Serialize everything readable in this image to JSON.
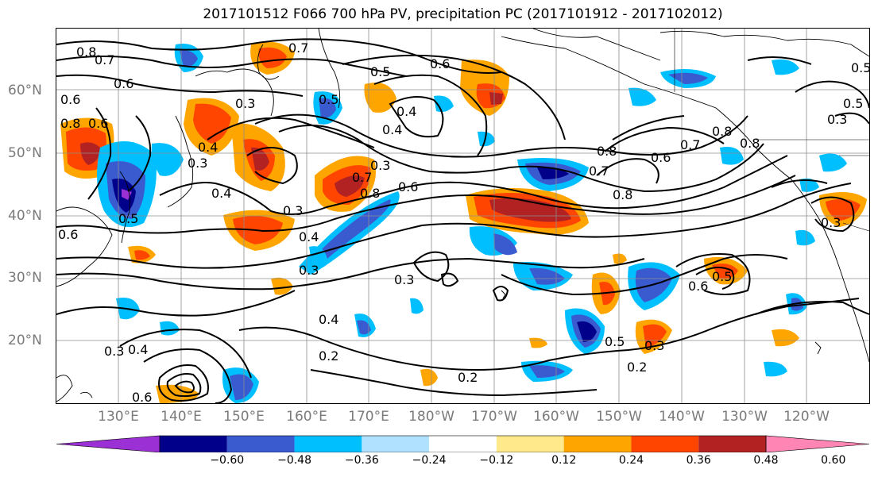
{
  "title": "2017101512 F066 700 hPa PV, precipitation PC (2017101912 - 2017102012)",
  "lat_labels": [
    "60°N",
    "50°N",
    "40°N",
    "30°N",
    "20°N"
  ],
  "lon_labels": [
    "130°E",
    "140°E",
    "150°E",
    "160°E",
    "170°E",
    "180°W",
    "170°W",
    "160°W",
    "150°W",
    "140°W",
    "130°W",
    "120°W"
  ],
  "colorbar": {
    "ticks": [
      "−0.60",
      "−0.48",
      "−0.36",
      "−0.24",
      "−0.12",
      "0.12",
      "0.24",
      "0.36",
      "0.48",
      "0.60"
    ],
    "colors": [
      "#9b30d4",
      "#00008b",
      "#3a5bd0",
      "#00bfff",
      "#b0e2ff",
      "#ffffff",
      "#ffe98a",
      "#ffa500",
      "#ff4500",
      "#b22222",
      "#ff85b5"
    ]
  },
  "contour_labels": [
    "0.8",
    "0.7",
    "0.6",
    "0.7",
    "0.5",
    "0.6",
    "0.4",
    "0.4",
    "0.3",
    "0.6",
    "0.7",
    "0.8",
    "0.8",
    "0.7",
    "0.6",
    "0.8",
    "0.5",
    "0.3",
    "0.4",
    "0.5",
    "0.6",
    "0.4",
    "0.3",
    "0.3",
    "0.4",
    "0.3",
    "0.2",
    "0.2",
    "0.5",
    "0.3",
    "0.2",
    "0.6",
    "0.5",
    "0.8",
    "0.7",
    "0.8",
    "0.5",
    "0.3",
    "0.6",
    "0.4",
    "0.4",
    "0.5",
    "0.3",
    "0.6",
    "0.6",
    "0.8",
    "0.3",
    "0.3"
  ]
}
